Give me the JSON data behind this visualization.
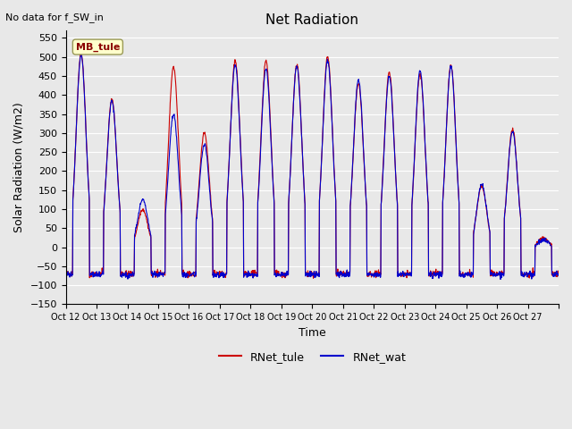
{
  "title": "Net Radiation",
  "top_left_text": "No data for f_SW_in",
  "legend_box_text": "MB_tule",
  "xlabel": "Time",
  "ylabel": "Solar Radiation (W/m2)",
  "ylim": [
    -150,
    570
  ],
  "yticks": [
    -150,
    -100,
    -50,
    0,
    50,
    100,
    150,
    200,
    250,
    300,
    350,
    400,
    450,
    500,
    550
  ],
  "xtick_positions": [
    0,
    1,
    2,
    3,
    4,
    5,
    6,
    7,
    8,
    9,
    10,
    11,
    12,
    13,
    14,
    15,
    16
  ],
  "xtick_labels": [
    "Oct 12",
    "Oct 13",
    "Oct 14",
    "Oct 15",
    "Oct 16",
    "Oct 17",
    "Oct 18",
    "Oct 19",
    "Oct 20",
    "Oct 21",
    "Oct 22",
    "Oct 23",
    "Oct 24",
    "Oct 25",
    "Oct 26",
    "Oct 27",
    ""
  ],
  "line1_color": "#cc0000",
  "line2_color": "#0000cc",
  "legend1_label": "RNet_tule",
  "legend2_label": "RNet_wat",
  "bg_color": "#e8e8e8",
  "plot_bg_color": "#e8e8e8",
  "grid_color": "white",
  "n_days": 16,
  "points_per_day": 96,
  "seed": 42,
  "day_max_tule": [
    510,
    390,
    100,
    475,
    300,
    490,
    490,
    480,
    500,
    430,
    460,
    455,
    480,
    160,
    310,
    25
  ],
  "day_max_wat": [
    505,
    385,
    125,
    350,
    270,
    480,
    470,
    475,
    490,
    440,
    450,
    465,
    475,
    165,
    305,
    20
  ],
  "night_base_tule": -70,
  "night_base_wat": -72
}
